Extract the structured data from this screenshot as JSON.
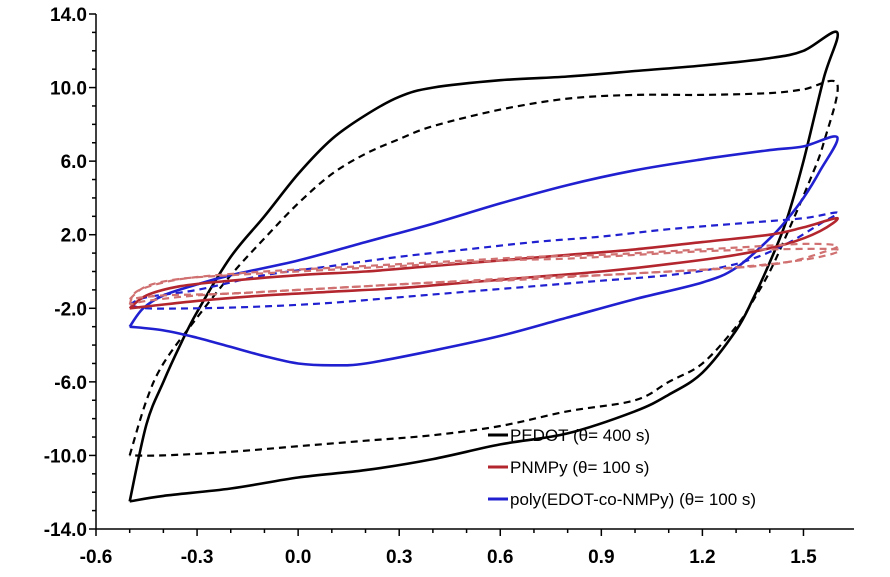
{
  "chart_data": {
    "type": "line",
    "title": "",
    "xlabel": "",
    "ylabel": "",
    "xlim": [
      -0.6,
      1.65
    ],
    "ylim": [
      -14.0,
      14.0
    ],
    "x_ticks": [
      -0.6,
      -0.3,
      0.0,
      0.3,
      0.6,
      0.9,
      1.2,
      1.5
    ],
    "x_tick_labels": [
      "-0.6",
      "-0.3",
      "0.0",
      "0.3",
      "0.6",
      "0.9",
      "1.2",
      "1.5"
    ],
    "y_ticks": [
      -14.0,
      -10.0,
      -6.0,
      -2.0,
      2.0,
      6.0,
      10.0,
      14.0
    ],
    "y_tick_labels": [
      "-14.0",
      "-10.0",
      "-6.0",
      "-2.0",
      "2.0",
      "6.0",
      "10.0",
      "14.0"
    ],
    "grid": false,
    "legend_position": "bottom-right",
    "legend": [
      {
        "label": "PEDOT (θ= 400 s)",
        "color": "#000000"
      },
      {
        "label": "PNMPy (θ= 100 s)",
        "color": "#b3262e"
      },
      {
        "label": "poly(EDOT-co-NMPy) (θ= 100 s)",
        "color": "#2020d0"
      }
    ],
    "series": [
      {
        "color": "#000000",
        "dashed": false,
        "points": [
          [
            -0.5,
            -12.5
          ],
          [
            -0.45,
            -8.3
          ],
          [
            -0.4,
            -6.0
          ],
          [
            -0.35,
            -4.0
          ],
          [
            -0.3,
            -2.2
          ],
          [
            -0.2,
            0.8
          ],
          [
            -0.1,
            3.0
          ],
          [
            0.0,
            5.3
          ],
          [
            0.1,
            7.2
          ],
          [
            0.2,
            8.5
          ],
          [
            0.3,
            9.5
          ],
          [
            0.4,
            10.0
          ],
          [
            0.6,
            10.4
          ],
          [
            0.8,
            10.6
          ],
          [
            1.0,
            10.9
          ],
          [
            1.2,
            11.2
          ],
          [
            1.4,
            11.6
          ],
          [
            1.5,
            12.0
          ],
          [
            1.6,
            13.0
          ],
          [
            1.56,
            10.5
          ],
          [
            1.5,
            6.0
          ],
          [
            1.45,
            2.8
          ],
          [
            1.4,
            0.5
          ],
          [
            1.35,
            -1.5
          ],
          [
            1.3,
            -3.2
          ],
          [
            1.2,
            -5.5
          ],
          [
            1.1,
            -6.7
          ],
          [
            1.0,
            -7.6
          ],
          [
            0.8,
            -8.8
          ],
          [
            0.6,
            -9.4
          ],
          [
            0.4,
            -10.2
          ],
          [
            0.2,
            -10.8
          ],
          [
            0.0,
            -11.2
          ],
          [
            -0.2,
            -11.8
          ],
          [
            -0.4,
            -12.2
          ],
          [
            -0.5,
            -12.5
          ]
        ]
      },
      {
        "color": "#000000",
        "dashed": true,
        "points": [
          [
            -0.5,
            -10.0
          ],
          [
            -0.45,
            -7.0
          ],
          [
            -0.4,
            -5.0
          ],
          [
            -0.3,
            -2.5
          ],
          [
            -0.2,
            -0.2
          ],
          [
            -0.1,
            1.8
          ],
          [
            0.0,
            3.7
          ],
          [
            0.1,
            5.3
          ],
          [
            0.2,
            6.4
          ],
          [
            0.3,
            7.2
          ],
          [
            0.4,
            7.9
          ],
          [
            0.6,
            8.8
          ],
          [
            0.8,
            9.4
          ],
          [
            1.0,
            9.6
          ],
          [
            1.2,
            9.6
          ],
          [
            1.4,
            9.7
          ],
          [
            1.5,
            9.9
          ],
          [
            1.6,
            10.2
          ],
          [
            1.56,
            7.0
          ],
          [
            1.52,
            5.0
          ],
          [
            1.45,
            2.0
          ],
          [
            1.4,
            0.0
          ],
          [
            1.35,
            -1.6
          ],
          [
            1.3,
            -3.0
          ],
          [
            1.2,
            -5.0
          ],
          [
            1.1,
            -6.0
          ],
          [
            1.0,
            -7.0
          ],
          [
            0.8,
            -7.6
          ],
          [
            0.6,
            -8.4
          ],
          [
            0.4,
            -8.9
          ],
          [
            0.2,
            -9.2
          ],
          [
            0.0,
            -9.5
          ],
          [
            -0.2,
            -9.8
          ],
          [
            -0.4,
            -10.0
          ],
          [
            -0.5,
            -10.0
          ]
        ]
      },
      {
        "color": "#2020d0",
        "dashed": false,
        "points": [
          [
            -0.5,
            -3.0
          ],
          [
            -0.46,
            -2.0
          ],
          [
            -0.4,
            -1.3
          ],
          [
            -0.3,
            -0.7
          ],
          [
            -0.2,
            -0.2
          ],
          [
            0.0,
            0.6
          ],
          [
            0.2,
            1.6
          ],
          [
            0.4,
            2.6
          ],
          [
            0.6,
            3.7
          ],
          [
            0.8,
            4.7
          ],
          [
            1.0,
            5.5
          ],
          [
            1.2,
            6.1
          ],
          [
            1.4,
            6.6
          ],
          [
            1.5,
            6.8
          ],
          [
            1.6,
            7.3
          ],
          [
            1.55,
            5.5
          ],
          [
            1.5,
            4.0
          ],
          [
            1.45,
            2.8
          ],
          [
            1.4,
            1.8
          ],
          [
            1.3,
            0.2
          ],
          [
            1.2,
            -0.6
          ],
          [
            1.0,
            -1.5
          ],
          [
            0.8,
            -2.5
          ],
          [
            0.6,
            -3.5
          ],
          [
            0.4,
            -4.3
          ],
          [
            0.2,
            -5.0
          ],
          [
            0.1,
            -5.1
          ],
          [
            0.0,
            -5.0
          ],
          [
            -0.1,
            -4.6
          ],
          [
            -0.2,
            -4.1
          ],
          [
            -0.3,
            -3.6
          ],
          [
            -0.4,
            -3.2
          ],
          [
            -0.5,
            -3.0
          ]
        ]
      },
      {
        "color": "#2020d0",
        "dashed": true,
        "points": [
          [
            -0.5,
            -1.8
          ],
          [
            -0.45,
            -1.4
          ],
          [
            -0.3,
            -1.0
          ],
          [
            -0.1,
            -0.2
          ],
          [
            0.1,
            0.3
          ],
          [
            0.3,
            0.8
          ],
          [
            0.5,
            1.2
          ],
          [
            0.7,
            1.6
          ],
          [
            0.9,
            1.9
          ],
          [
            1.1,
            2.3
          ],
          [
            1.3,
            2.6
          ],
          [
            1.5,
            2.9
          ],
          [
            1.6,
            3.2
          ],
          [
            1.55,
            2.6
          ],
          [
            1.45,
            1.5
          ],
          [
            1.35,
            0.7
          ],
          [
            1.25,
            0.2
          ],
          [
            1.1,
            -0.2
          ],
          [
            0.9,
            -0.5
          ],
          [
            0.7,
            -0.8
          ],
          [
            0.5,
            -1.1
          ],
          [
            0.3,
            -1.4
          ],
          [
            0.1,
            -1.7
          ],
          [
            -0.1,
            -1.9
          ],
          [
            -0.3,
            -2.0
          ],
          [
            -0.45,
            -2.0
          ],
          [
            -0.5,
            -1.8
          ]
        ]
      },
      {
        "color": "#b3262e",
        "dashed": false,
        "points": [
          [
            -0.5,
            -2.0
          ],
          [
            -0.45,
            -1.3
          ],
          [
            -0.35,
            -0.8
          ],
          [
            -0.2,
            -0.5
          ],
          [
            0.0,
            -0.2
          ],
          [
            0.2,
            0.0
          ],
          [
            0.4,
            0.3
          ],
          [
            0.6,
            0.6
          ],
          [
            0.8,
            0.9
          ],
          [
            1.0,
            1.2
          ],
          [
            1.2,
            1.6
          ],
          [
            1.4,
            2.0
          ],
          [
            1.5,
            2.4
          ],
          [
            1.6,
            2.9
          ],
          [
            1.55,
            2.2
          ],
          [
            1.45,
            1.5
          ],
          [
            1.3,
            0.9
          ],
          [
            1.1,
            0.4
          ],
          [
            0.9,
            0.0
          ],
          [
            0.7,
            -0.3
          ],
          [
            0.5,
            -0.6
          ],
          [
            0.3,
            -0.9
          ],
          [
            0.1,
            -1.1
          ],
          [
            -0.1,
            -1.3
          ],
          [
            -0.3,
            -1.6
          ],
          [
            -0.45,
            -1.9
          ],
          [
            -0.5,
            -2.0
          ]
        ]
      },
      {
        "color": "#d07070",
        "dashed": true,
        "points": [
          [
            -0.5,
            -1.8
          ],
          [
            -0.48,
            -1.1
          ],
          [
            -0.4,
            -0.6
          ],
          [
            -0.3,
            -0.3
          ],
          [
            -0.1,
            0.0
          ],
          [
            0.1,
            0.2
          ],
          [
            0.3,
            0.4
          ],
          [
            0.5,
            0.6
          ],
          [
            0.7,
            0.8
          ],
          [
            0.9,
            0.9
          ],
          [
            1.1,
            1.1
          ],
          [
            1.3,
            1.3
          ],
          [
            1.5,
            1.5
          ],
          [
            1.6,
            1.4
          ],
          [
            1.55,
            1.0
          ],
          [
            1.45,
            0.5
          ],
          [
            1.3,
            0.2
          ],
          [
            1.1,
            0.0
          ],
          [
            0.9,
            -0.2
          ],
          [
            0.7,
            -0.3
          ],
          [
            0.5,
            -0.5
          ],
          [
            0.3,
            -0.7
          ],
          [
            0.1,
            -0.9
          ],
          [
            -0.1,
            -1.1
          ],
          [
            -0.3,
            -1.3
          ],
          [
            -0.45,
            -1.6
          ],
          [
            -0.5,
            -1.8
          ]
        ]
      },
      {
        "color": "#d07070",
        "dashed": true,
        "points": [
          [
            -0.5,
            -1.5
          ],
          [
            -0.45,
            -0.8
          ],
          [
            -0.35,
            -0.4
          ],
          [
            -0.2,
            -0.2
          ],
          [
            0.0,
            0.0
          ],
          [
            0.2,
            0.2
          ],
          [
            0.4,
            0.4
          ],
          [
            0.6,
            0.6
          ],
          [
            0.8,
            0.7
          ],
          [
            1.0,
            0.9
          ],
          [
            1.2,
            1.1
          ],
          [
            1.4,
            1.2
          ],
          [
            1.6,
            1.2
          ],
          [
            1.55,
            0.8
          ],
          [
            1.4,
            0.4
          ],
          [
            1.2,
            0.1
          ],
          [
            1.0,
            -0.1
          ],
          [
            0.8,
            -0.3
          ],
          [
            0.6,
            -0.5
          ],
          [
            0.4,
            -0.6
          ],
          [
            0.2,
            -0.8
          ],
          [
            0.0,
            -1.0
          ],
          [
            -0.2,
            -1.2
          ],
          [
            -0.4,
            -1.3
          ],
          [
            -0.5,
            -1.5
          ]
        ]
      }
    ]
  }
}
